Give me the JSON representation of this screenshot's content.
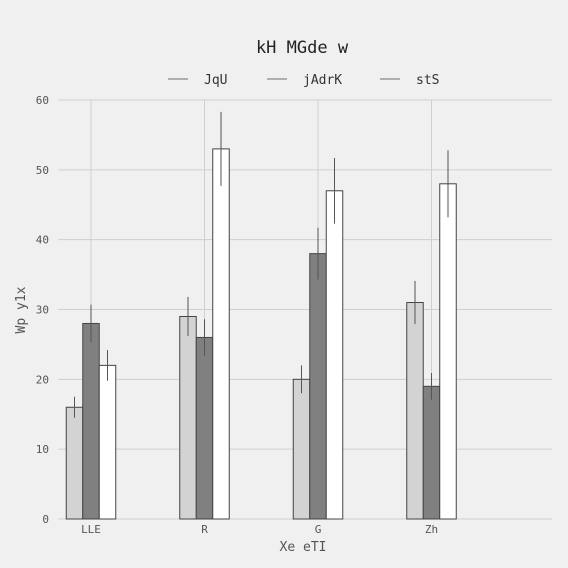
{
  "chart_data": {
    "type": "bar",
    "title": "kH MGde w",
    "xlabel": "Xe eTI",
    "ylabel": "Wp y1x",
    "categories": [
      "LLE",
      "R",
      "G",
      "Zh"
    ],
    "ylim": [
      0,
      60
    ],
    "yticks": [
      0,
      10,
      20,
      30,
      40,
      50,
      60
    ],
    "grid": true,
    "legend_position": "top-center",
    "series": [
      {
        "name": "JqU",
        "color": "#d3d3d3",
        "values": [
          16,
          29,
          20,
          31
        ],
        "errors": [
          1.5,
          2.8,
          2.0,
          3.1
        ]
      },
      {
        "name": "jAdrK",
        "color": "#808080",
        "values": [
          28,
          26,
          38,
          19
        ],
        "errors": [
          2.7,
          2.6,
          3.7,
          1.9
        ]
      },
      {
        "name": "stS",
        "color": "#ffffff",
        "values": [
          22,
          53,
          47,
          48
        ],
        "errors": [
          2.2,
          5.3,
          4.7,
          4.8
        ]
      }
    ]
  }
}
